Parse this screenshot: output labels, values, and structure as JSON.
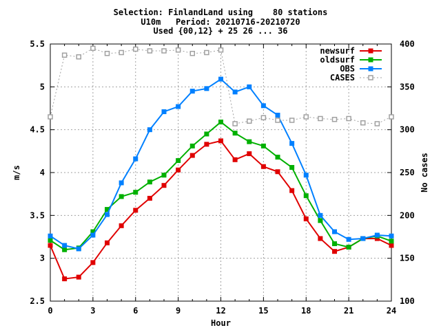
{
  "header": {
    "line1": "Selection: FinlandLand using    80 stations",
    "line2": "U10m   Period: 20210716-20210720",
    "line3": "Used {00,12} + 25 26 ... 36"
  },
  "chart_data": {
    "type": "line",
    "xlabel": "Hour",
    "ylabel": "m/s",
    "y2label": "No cases",
    "xlim": [
      0,
      24
    ],
    "ylim": [
      2.5,
      5.5
    ],
    "y2lim": [
      100,
      400
    ],
    "xticks": [
      "0",
      "3",
      "6",
      "9",
      "12",
      "15",
      "18",
      "21",
      "24"
    ],
    "yticks": [
      "2.5",
      "3",
      "3.5",
      "4",
      "4.5",
      "5",
      "5.5"
    ],
    "y2ticks": [
      "100",
      "150",
      "200",
      "250",
      "300",
      "350",
      "400"
    ],
    "grid": true,
    "legend_position": "top-right",
    "x": [
      0,
      1,
      2,
      3,
      4,
      5,
      6,
      7,
      8,
      9,
      10,
      11,
      12,
      13,
      14,
      15,
      16,
      17,
      18,
      19,
      20,
      21,
      22,
      23,
      24
    ],
    "series": [
      {
        "name": "newsurf",
        "color": "#e00000",
        "marker": "filled-square",
        "axis": "left",
        "values": [
          3.15,
          2.76,
          2.78,
          2.95,
          3.18,
          3.38,
          3.56,
          3.7,
          3.85,
          4.03,
          4.2,
          4.33,
          4.37,
          4.15,
          4.22,
          4.07,
          4.01,
          3.79,
          3.46,
          3.23,
          3.08,
          3.13,
          3.23,
          3.23,
          3.15
        ]
      },
      {
        "name": "oldsurf",
        "color": "#00b000",
        "marker": "filled-square",
        "axis": "left",
        "values": [
          3.21,
          3.1,
          3.12,
          3.31,
          3.57,
          3.72,
          3.77,
          3.89,
          3.97,
          4.14,
          4.31,
          4.45,
          4.59,
          4.46,
          4.36,
          4.31,
          4.18,
          4.06,
          3.73,
          3.44,
          3.17,
          3.13,
          3.23,
          3.26,
          3.2
        ]
      },
      {
        "name": "OBS",
        "color": "#0080ff",
        "marker": "filled-square",
        "axis": "left",
        "values": [
          3.26,
          3.15,
          3.11,
          3.27,
          3.51,
          3.88,
          4.16,
          4.5,
          4.71,
          4.77,
          4.95,
          4.98,
          5.09,
          4.94,
          5.0,
          4.78,
          4.67,
          4.34,
          3.97,
          3.5,
          3.31,
          3.22,
          3.23,
          3.27,
          3.26
        ]
      },
      {
        "name": "CASES",
        "color": "#a0a0a0",
        "marker": "open-square",
        "axis": "right",
        "dashed": true,
        "values": [
          315,
          387,
          385,
          395,
          389,
          390,
          394,
          392,
          392,
          393,
          389,
          390,
          393,
          307,
          310,
          314,
          311,
          311,
          315,
          313,
          312,
          313,
          308,
          307,
          315
        ]
      }
    ]
  }
}
